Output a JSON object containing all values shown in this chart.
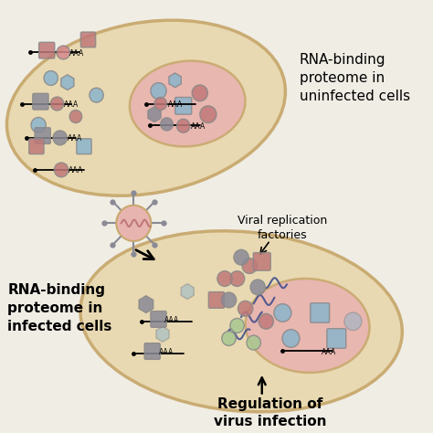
{
  "bg_color": "#f0ede5",
  "cell1_outer_color": "#c8a96e",
  "cell1_inner_color": "#e8b4b0",
  "cell1_outer_fill": "#e8d8b0",
  "cell2_outer_color": "#c8a96e",
  "cell2_inner_color": "#e8b4b0",
  "cell2_outer_fill": "#e8d8b0",
  "pink_color": "#d4888a",
  "blue_color": "#8ab4cc",
  "gray_color": "#8a8a96",
  "rose_color": "#c07878",
  "green_color": "#a8c890",
  "dark_blue": "#3a4a8c",
  "label1": "RNA-binding\nproteome in\nuninfected cells",
  "label2": "RNA-binding\nproteome in\ninfected cells",
  "label3": "Viral replication\nfactories",
  "label4": "Regulation of\nvirus infection",
  "font_size_labels": 11,
  "font_size_small": 7
}
